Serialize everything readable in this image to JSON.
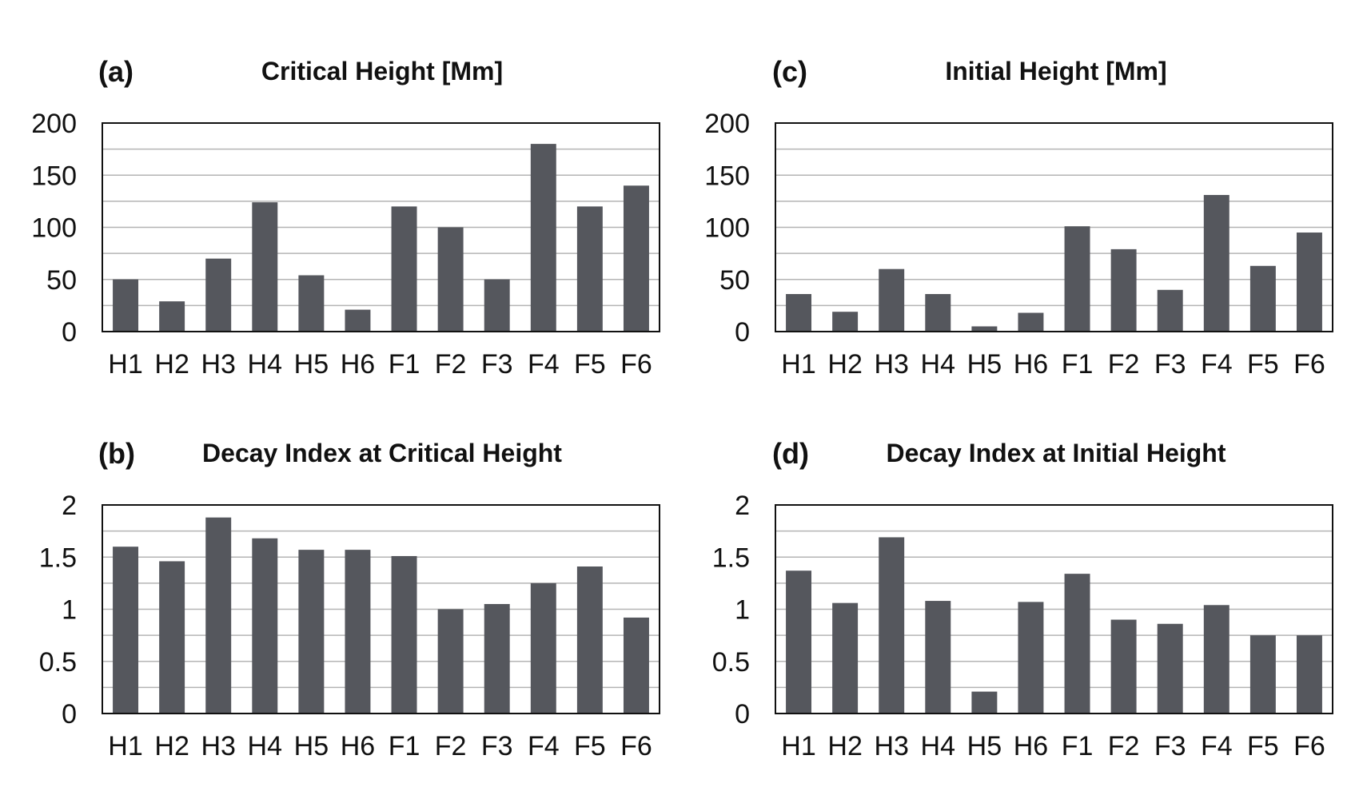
{
  "chart_data": [
    {
      "id": "a",
      "type": "bar",
      "panel_label": "(a)",
      "title": "Critical Height [Mm]",
      "categories": [
        "H1",
        "H2",
        "H3",
        "H4",
        "H5",
        "H6",
        "F1",
        "F2",
        "F3",
        "F4",
        "F5",
        "F6"
      ],
      "values": [
        50,
        29,
        70,
        124,
        54,
        21,
        120,
        100,
        50,
        180,
        120,
        140
      ],
      "ylim": [
        0,
        200
      ],
      "yticks": [
        0,
        50,
        100,
        150,
        200
      ],
      "ytick_labels": [
        "0",
        "50",
        "100",
        "150",
        "200"
      ],
      "grid_step": 25,
      "xlabel": "",
      "ylabel": "",
      "color": "#55575d"
    },
    {
      "id": "b",
      "type": "bar",
      "panel_label": "(b)",
      "title": "Decay Index at Critical Height",
      "categories": [
        "H1",
        "H2",
        "H3",
        "H4",
        "H5",
        "H6",
        "F1",
        "F2",
        "F3",
        "F4",
        "F5",
        "F6"
      ],
      "values": [
        1.6,
        1.46,
        1.88,
        1.68,
        1.57,
        1.57,
        1.51,
        1.0,
        1.05,
        1.25,
        1.41,
        0.92
      ],
      "ylim": [
        0,
        2
      ],
      "yticks": [
        0,
        0.5,
        1,
        1.5,
        2
      ],
      "ytick_labels": [
        "0",
        "0.5",
        "1",
        "1.5",
        "2"
      ],
      "grid_step": 0.25,
      "xlabel": "",
      "ylabel": "",
      "color": "#55575d"
    },
    {
      "id": "c",
      "type": "bar",
      "panel_label": "(c)",
      "title": "Initial Height [Mm]",
      "categories": [
        "H1",
        "H2",
        "H3",
        "H4",
        "H5",
        "H6",
        "F1",
        "F2",
        "F3",
        "F4",
        "F5",
        "F6"
      ],
      "values": [
        36,
        19,
        60,
        36,
        5,
        18,
        101,
        79,
        40,
        131,
        63,
        95
      ],
      "ylim": [
        0,
        200
      ],
      "yticks": [
        0,
        50,
        100,
        150,
        200
      ],
      "ytick_labels": [
        "0",
        "50",
        "100",
        "150",
        "200"
      ],
      "grid_step": 25,
      "xlabel": "",
      "ylabel": "",
      "color": "#55575d"
    },
    {
      "id": "d",
      "type": "bar",
      "panel_label": "(d)",
      "title": "Decay Index at Initial Height",
      "categories": [
        "H1",
        "H2",
        "H3",
        "H4",
        "H5",
        "H6",
        "F1",
        "F2",
        "F3",
        "F4",
        "F5",
        "F6"
      ],
      "values": [
        1.37,
        1.06,
        1.69,
        1.08,
        0.21,
        1.07,
        1.34,
        0.9,
        0.86,
        1.04,
        0.75,
        0.75
      ],
      "ylim": [
        0,
        2
      ],
      "yticks": [
        0,
        0.5,
        1,
        1.5,
        2
      ],
      "ytick_labels": [
        "0",
        "0.5",
        "1",
        "1.5",
        "2"
      ],
      "grid_step": 0.25,
      "xlabel": "",
      "ylabel": "",
      "color": "#55575d"
    }
  ]
}
